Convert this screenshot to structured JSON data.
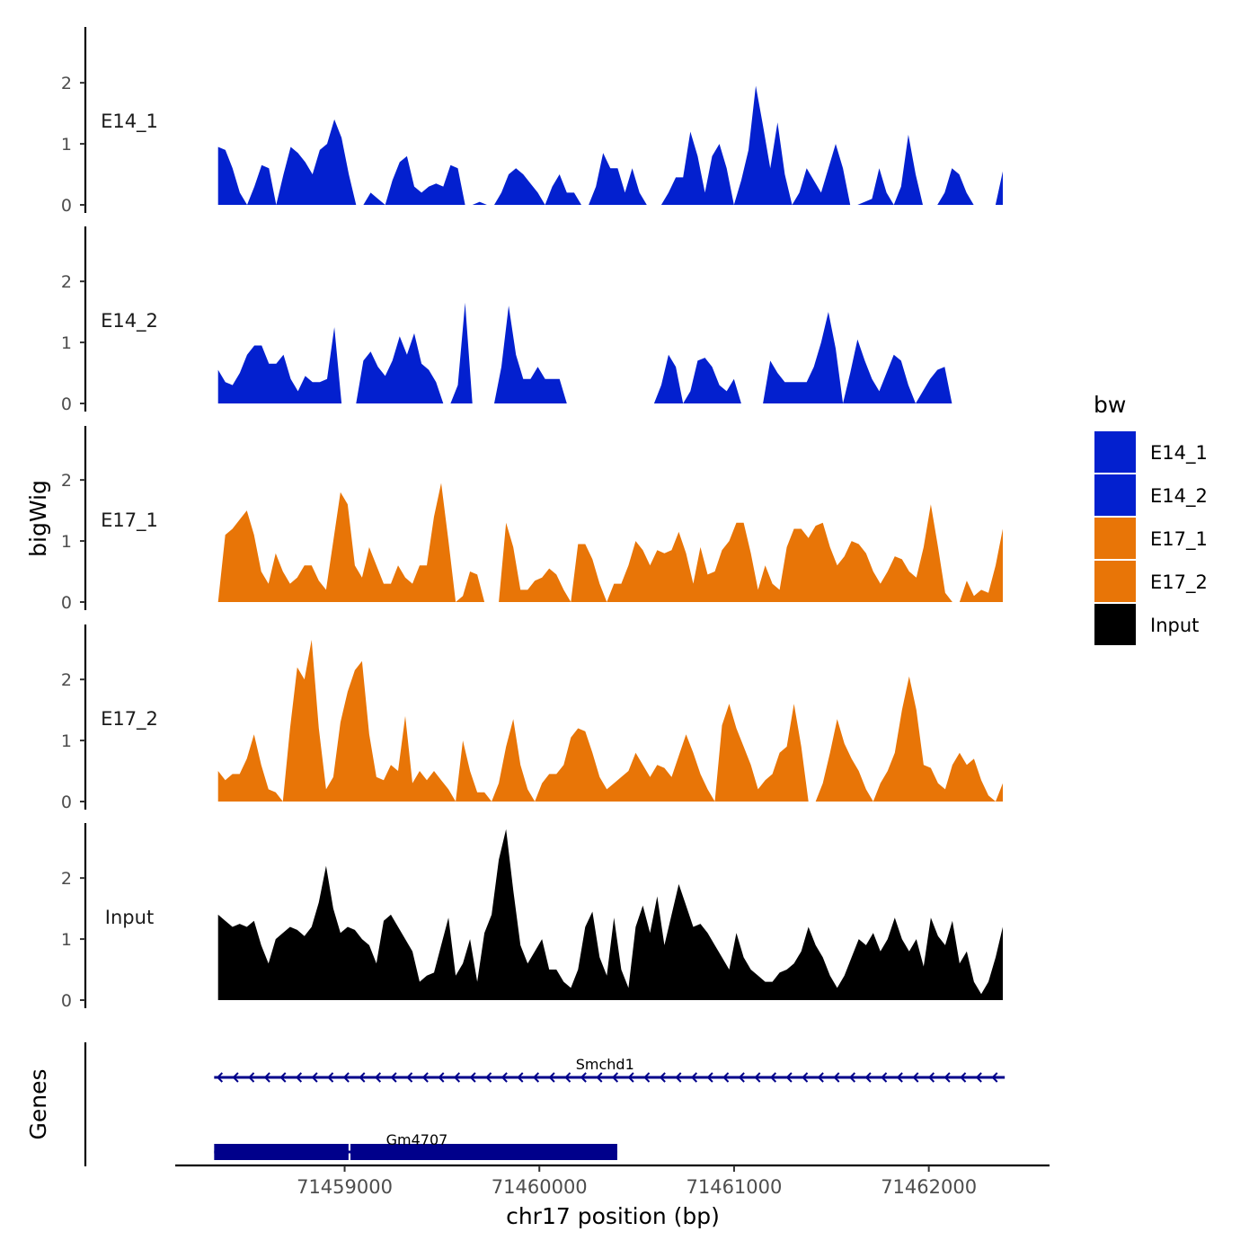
{
  "chart_data": {
    "type": "area",
    "title": "",
    "ylabel": "bigWig",
    "xlabel": "chr17 position (bp)",
    "genes_label": "Genes",
    "ylim": [
      0,
      2.9
    ],
    "yticks": [
      0,
      1,
      2
    ],
    "xlim": [
      71458130,
      71462620
    ],
    "xticks": [
      71459000,
      71460000,
      71461000,
      71462000
    ],
    "xtick_labels": [
      "71459000",
      "71460000",
      "71461000",
      "71462000"
    ],
    "x_start": 71458350,
    "x_end": 71462380,
    "legend": {
      "title": "bw",
      "position": "right",
      "entries": [
        {
          "label": "E14_1",
          "color": "#0320CF"
        },
        {
          "label": "E14_2",
          "color": "#0320CF"
        },
        {
          "label": "E17_1",
          "color": "#E87507"
        },
        {
          "label": "E17_2",
          "color": "#E87507"
        },
        {
          "label": "Input",
          "color": "#000000"
        }
      ]
    },
    "series": [
      {
        "name": "E14_1",
        "color": "#0320CF",
        "values": [
          0.95,
          0.9,
          0.6,
          0.2,
          0.0,
          0.3,
          0.65,
          0.6,
          0.0,
          0.5,
          0.95,
          0.85,
          0.7,
          0.5,
          0.9,
          1.0,
          1.4,
          1.1,
          0.5,
          0.0,
          0.0,
          0.2,
          0.1,
          0.0,
          0.4,
          0.7,
          0.8,
          0.3,
          0.2,
          0.3,
          0.35,
          0.3,
          0.65,
          0.6,
          0.0,
          0.0,
          0.05,
          0.0,
          0.0,
          0.2,
          0.5,
          0.6,
          0.5,
          0.35,
          0.2,
          0.0,
          0.3,
          0.5,
          0.2,
          0.2,
          0.0,
          0.0,
          0.3,
          0.85,
          0.6,
          0.6,
          0.2,
          0.6,
          0.2,
          0.0,
          0.0,
          0.0,
          0.2,
          0.45,
          0.45,
          1.2,
          0.8,
          0.2,
          0.8,
          1.0,
          0.6,
          0.0,
          0.4,
          0.9,
          1.95,
          1.3,
          0.6,
          1.35,
          0.5,
          0.0,
          0.2,
          0.6,
          0.4,
          0.2,
          0.6,
          1.0,
          0.6,
          0.0,
          0.0,
          0.05,
          0.1,
          0.6,
          0.2,
          0.0,
          0.3,
          1.15,
          0.5,
          0.0,
          0.0,
          0.0,
          0.2,
          0.6,
          0.5,
          0.2,
          0.0,
          0.0,
          0.0,
          0.0,
          0.55
        ]
      },
      {
        "name": "E14_2",
        "color": "#0320CF",
        "values": [
          0.55,
          0.35,
          0.3,
          0.5,
          0.8,
          0.95,
          0.95,
          0.65,
          0.65,
          0.8,
          0.4,
          0.2,
          0.45,
          0.35,
          0.35,
          0.4,
          1.25,
          0.0,
          0.0,
          0.0,
          0.7,
          0.85,
          0.6,
          0.45,
          0.7,
          1.1,
          0.8,
          1.15,
          0.65,
          0.55,
          0.35,
          0.0,
          0.0,
          0.3,
          1.65,
          0.0,
          0.0,
          0.0,
          0.0,
          0.6,
          1.6,
          0.8,
          0.4,
          0.4,
          0.6,
          0.4,
          0.4,
          0.4,
          0.0,
          0.0,
          0.0,
          0.0,
          0.0,
          0.0,
          0.0,
          0.0,
          0.0,
          0.0,
          0.0,
          0.0,
          0.0,
          0.3,
          0.8,
          0.6,
          0.0,
          0.2,
          0.7,
          0.75,
          0.6,
          0.3,
          0.2,
          0.4,
          0.0,
          0.0,
          0.0,
          0.0,
          0.7,
          0.5,
          0.35,
          0.35,
          0.35,
          0.35,
          0.6,
          1.0,
          1.5,
          0.9,
          0.0,
          0.5,
          1.05,
          0.7,
          0.4,
          0.2,
          0.5,
          0.8,
          0.7,
          0.3,
          0.0,
          0.2,
          0.4,
          0.55,
          0.6,
          0.0,
          0.0,
          0.0,
          0.0,
          0.0,
          0.0,
          0.0,
          0.0
        ]
      },
      {
        "name": "E17_1",
        "color": "#E87507",
        "values": [
          0.0,
          1.1,
          1.2,
          1.35,
          1.5,
          1.1,
          0.5,
          0.3,
          0.8,
          0.5,
          0.3,
          0.4,
          0.6,
          0.6,
          0.35,
          0.2,
          1.0,
          1.8,
          1.6,
          0.6,
          0.4,
          0.9,
          0.6,
          0.3,
          0.3,
          0.6,
          0.4,
          0.3,
          0.6,
          0.6,
          1.4,
          1.95,
          1.0,
          0.0,
          0.1,
          0.5,
          0.45,
          0.0,
          0.0,
          0.0,
          1.3,
          0.9,
          0.2,
          0.2,
          0.35,
          0.4,
          0.55,
          0.45,
          0.2,
          0.0,
          0.95,
          0.95,
          0.7,
          0.3,
          0.0,
          0.3,
          0.3,
          0.6,
          1.0,
          0.85,
          0.6,
          0.85,
          0.8,
          0.85,
          1.15,
          0.8,
          0.3,
          0.9,
          0.45,
          0.5,
          0.85,
          1.0,
          1.3,
          1.3,
          0.8,
          0.2,
          0.6,
          0.3,
          0.2,
          0.9,
          1.2,
          1.2,
          1.05,
          1.25,
          1.3,
          0.9,
          0.6,
          0.75,
          1.0,
          0.95,
          0.8,
          0.5,
          0.3,
          0.5,
          0.75,
          0.7,
          0.5,
          0.4,
          0.9,
          1.6,
          0.9,
          0.15,
          0.0,
          0.0,
          0.35,
          0.1,
          0.2,
          0.15,
          0.6,
          1.2
        ]
      },
      {
        "name": "E17_2",
        "color": "#E87507",
        "values": [
          0.5,
          0.35,
          0.45,
          0.45,
          0.7,
          1.1,
          0.6,
          0.2,
          0.15,
          0.0,
          1.2,
          2.2,
          2.0,
          2.65,
          1.2,
          0.2,
          0.4,
          1.3,
          1.8,
          2.15,
          2.3,
          1.1,
          0.4,
          0.35,
          0.6,
          0.5,
          1.4,
          0.3,
          0.5,
          0.35,
          0.5,
          0.35,
          0.2,
          0.0,
          1.0,
          0.5,
          0.15,
          0.15,
          0.0,
          0.3,
          0.9,
          1.35,
          0.6,
          0.2,
          0.0,
          0.3,
          0.45,
          0.45,
          0.6,
          1.05,
          1.2,
          1.15,
          0.8,
          0.4,
          0.2,
          0.3,
          0.4,
          0.5,
          0.8,
          0.6,
          0.4,
          0.6,
          0.55,
          0.4,
          0.75,
          1.1,
          0.8,
          0.45,
          0.2,
          0.0,
          1.25,
          1.6,
          1.2,
          0.9,
          0.6,
          0.2,
          0.35,
          0.45,
          0.8,
          0.9,
          1.6,
          0.9,
          0.0,
          0.0,
          0.3,
          0.8,
          1.35,
          0.95,
          0.7,
          0.5,
          0.2,
          0.0,
          0.3,
          0.5,
          0.8,
          1.5,
          2.05,
          1.5,
          0.6,
          0.55,
          0.3,
          0.2,
          0.6,
          0.8,
          0.6,
          0.7,
          0.35,
          0.1,
          0.0,
          0.3
        ]
      },
      {
        "name": "Input",
        "color": "#000000",
        "values": [
          1.4,
          1.3,
          1.2,
          1.25,
          1.2,
          1.3,
          0.9,
          0.6,
          1.0,
          1.1,
          1.2,
          1.15,
          1.05,
          1.2,
          1.6,
          2.2,
          1.5,
          1.1,
          1.2,
          1.15,
          1.0,
          0.9,
          0.6,
          1.3,
          1.4,
          1.2,
          1.0,
          0.8,
          0.3,
          0.4,
          0.45,
          0.9,
          1.35,
          0.4,
          0.6,
          1.0,
          0.3,
          1.1,
          1.4,
          2.3,
          2.8,
          1.8,
          0.9,
          0.6,
          0.8,
          1.0,
          0.5,
          0.5,
          0.3,
          0.2,
          0.5,
          1.2,
          1.45,
          0.7,
          0.4,
          1.35,
          0.5,
          0.2,
          1.2,
          1.55,
          1.1,
          1.7,
          0.9,
          1.4,
          1.9,
          1.55,
          1.2,
          1.25,
          1.1,
          0.9,
          0.7,
          0.5,
          1.1,
          0.7,
          0.5,
          0.4,
          0.3,
          0.3,
          0.45,
          0.5,
          0.6,
          0.8,
          1.2,
          0.9,
          0.7,
          0.4,
          0.2,
          0.4,
          0.7,
          1.0,
          0.9,
          1.1,
          0.8,
          1.0,
          1.35,
          1.0,
          0.8,
          1.0,
          0.55,
          1.35,
          1.05,
          0.9,
          1.3,
          0.6,
          0.8,
          0.3,
          0.1,
          0.3,
          0.7,
          1.2
        ]
      }
    ],
    "genes": [
      {
        "name": "Smchd1",
        "start": 71458330,
        "end": 71462390,
        "strand": "-",
        "track": 0,
        "exons": []
      },
      {
        "name": "Gm4707",
        "start": 71458330,
        "end": 71460400,
        "strand": "-",
        "track": 1,
        "exons": [
          [
            71458330,
            71459020
          ],
          [
            71459030,
            71460400
          ]
        ]
      }
    ]
  }
}
